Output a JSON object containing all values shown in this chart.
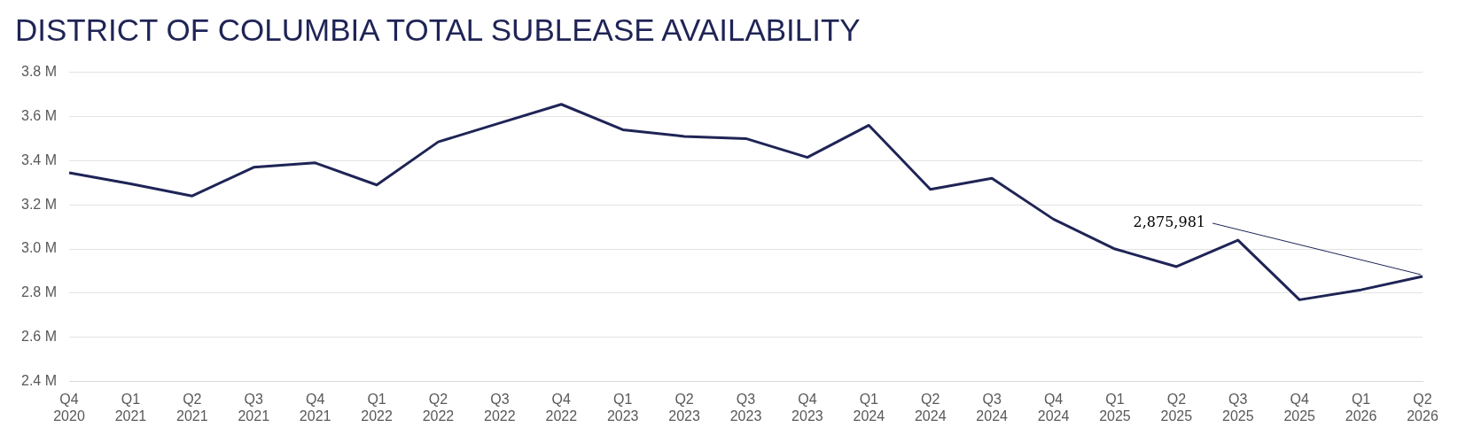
{
  "chart_data": {
    "type": "line",
    "title": "DISTRICT OF COLUMBIA TOTAL SUBLEASE AVAILABILITY",
    "categories": [
      "Q4 2020",
      "Q1 2021",
      "Q2 2021",
      "Q3 2021",
      "Q4 2021",
      "Q1 2022",
      "Q2 2022",
      "Q3 2022",
      "Q4 2022",
      "Q1 2023",
      "Q2 2023",
      "Q3 2023",
      "Q4 2023",
      "Q1 2024",
      "Q2 2024",
      "Q3 2024",
      "Q4 2024",
      "Q1 2025",
      "Q2 2025",
      "Q3 2025",
      "Q4 2025",
      "Q1 2026",
      "Q2 2026"
    ],
    "series": [
      {
        "color": "#1f2456",
        "values": [
          3.345,
          3.295,
          3.24,
          3.37,
          3.39,
          3.29,
          3.485,
          3.57,
          3.655,
          3.54,
          3.51,
          3.5,
          3.415,
          3.56,
          3.27,
          3.32,
          3.135,
          3.0,
          2.92,
          3.04,
          2.77,
          2.815,
          2.875981
        ]
      }
    ],
    "ylim": [
      2.4,
      3.8
    ],
    "yticks": [
      {
        "value": 2.4,
        "label": "2.4 M"
      },
      {
        "value": 2.6,
        "label": "2.6 M"
      },
      {
        "value": 2.8,
        "label": "2.8 M"
      },
      {
        "value": 3.0,
        "label": "3.0 M"
      },
      {
        "value": 3.2,
        "label": "3.2 M"
      },
      {
        "value": 3.4,
        "label": "3.4 M"
      },
      {
        "value": 3.6,
        "label": "3.6 M"
      },
      {
        "value": 3.8,
        "label": "3.8 M"
      }
    ],
    "grid": "y",
    "marker": "none",
    "line_style": "solid",
    "legend": false,
    "annotations": [
      {
        "text": "2,875,981",
        "x": "Q2 2026",
        "y": 2.875981
      }
    ]
  }
}
